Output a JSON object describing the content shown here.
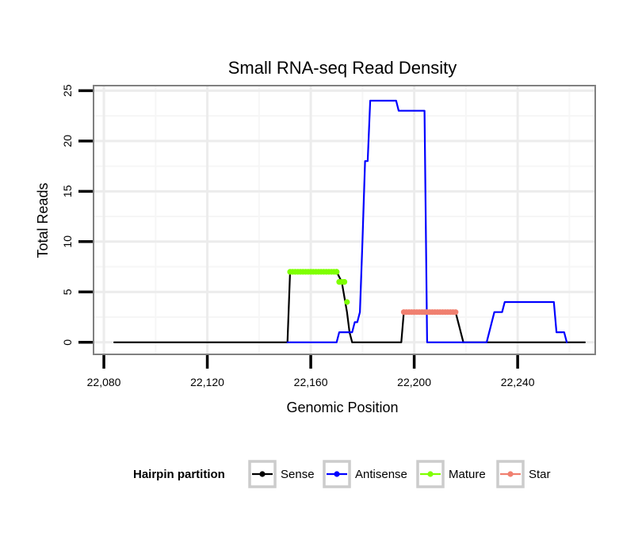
{
  "chart_data": {
    "type": "line",
    "title": "Small RNA-seq Read Density",
    "xlabel": "Genomic Position",
    "ylabel": "Total Reads",
    "xlim": [
      22076,
      22270
    ],
    "ylim": [
      -1.2,
      25.5
    ],
    "x_ticks": [
      22080,
      22120,
      22160,
      22200,
      22240
    ],
    "x_tick_labels": [
      "22,080",
      "22,120",
      "22,160",
      "22,200",
      "22,240"
    ],
    "y_ticks": [
      0,
      5,
      10,
      15,
      20,
      25
    ],
    "y_tick_labels": [
      "0",
      "5",
      "10",
      "15",
      "20",
      "25"
    ],
    "grid": true,
    "legend_position": "bottom",
    "legend_title": "Hairpin partition",
    "series": [
      {
        "name": "Sense",
        "color": "#000000",
        "points": [
          [
            22084,
            0
          ],
          [
            22151,
            0
          ],
          [
            22152,
            7
          ],
          [
            22170,
            7
          ],
          [
            22172,
            6
          ],
          [
            22174,
            3
          ],
          [
            22175,
            1
          ],
          [
            22176,
            0
          ],
          [
            22195,
            0
          ],
          [
            22196,
            3
          ],
          [
            22216,
            3
          ],
          [
            22219,
            0
          ],
          [
            22266,
            0
          ]
        ]
      },
      {
        "name": "Antisense",
        "color": "#0000ff",
        "points": [
          [
            22151,
            0
          ],
          [
            22170,
            0
          ],
          [
            22171,
            1
          ],
          [
            22175,
            1
          ],
          [
            22176,
            1
          ],
          [
            22177,
            2
          ],
          [
            22178,
            2
          ],
          [
            22179,
            3
          ],
          [
            22180,
            10
          ],
          [
            22181,
            18
          ],
          [
            22182,
            18
          ],
          [
            22183,
            24
          ],
          [
            22193,
            24
          ],
          [
            22194,
            23
          ],
          [
            22204,
            23
          ],
          [
            22205,
            0
          ],
          [
            22228,
            0
          ],
          [
            22231,
            3
          ],
          [
            22234,
            3
          ],
          [
            22235,
            4
          ],
          [
            22254,
            4
          ],
          [
            22255,
            1
          ],
          [
            22258,
            1
          ],
          [
            22259,
            0
          ]
        ]
      },
      {
        "name": "Mature",
        "color": "#7fff00",
        "points": [
          [
            22152,
            7
          ],
          [
            22170,
            7
          ],
          [
            22171,
            6
          ],
          [
            22173,
            6
          ],
          [
            22174,
            4
          ]
        ]
      },
      {
        "name": "Star",
        "color": "#f08070",
        "points": [
          [
            22196,
            3
          ],
          [
            22216,
            3
          ]
        ]
      }
    ]
  }
}
